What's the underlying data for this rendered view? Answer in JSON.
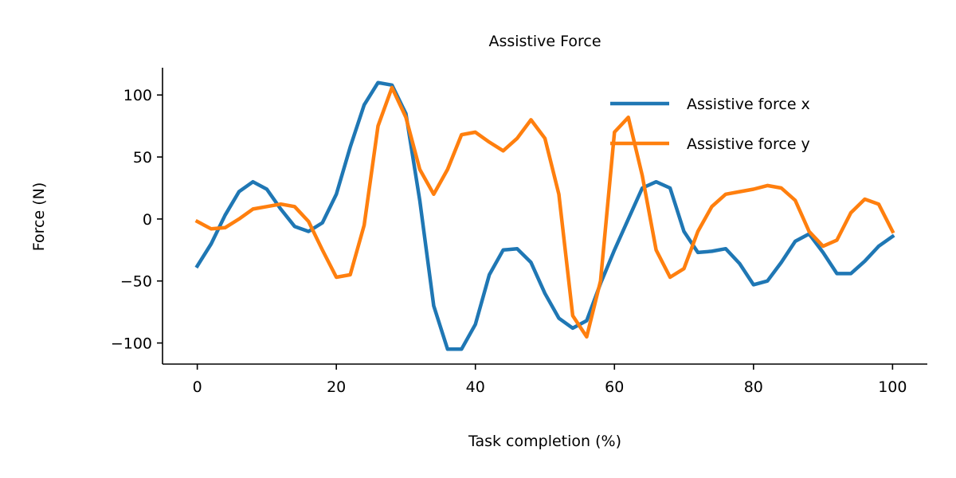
{
  "chart_data": {
    "type": "line",
    "title": "Assistive Force",
    "xlabel": "Task completion (%)",
    "ylabel": "Force (N)",
    "xlim": [
      -5,
      105
    ],
    "ylim": [
      -117,
      122
    ],
    "xticks": [
      0,
      20,
      40,
      60,
      80,
      100
    ],
    "yticks": [
      -100,
      -50,
      0,
      50,
      100
    ],
    "xtick_labels": [
      "0",
      "20",
      "40",
      "60",
      "80",
      "100"
    ],
    "ytick_labels": [
      "−100",
      "−50",
      "0",
      "50",
      "100"
    ],
    "grid": false,
    "legend_position": "top-right",
    "colors": {
      "series_x": "#1f77b4",
      "series_y": "#ff7f0e"
    },
    "x": [
      0,
      2,
      4,
      6,
      8,
      10,
      12,
      14,
      16,
      18,
      20,
      22,
      24,
      26,
      28,
      30,
      32,
      34,
      36,
      38,
      40,
      42,
      44,
      46,
      48,
      50,
      52,
      54,
      56,
      58,
      60,
      62,
      64,
      66,
      68,
      70,
      72,
      74,
      76,
      78,
      80,
      82,
      84,
      86,
      88,
      90,
      92,
      94,
      96,
      98,
      100
    ],
    "series": [
      {
        "name": "Assistive force x",
        "values": [
          -38,
          -20,
          3,
          22,
          30,
          24,
          8,
          -6,
          -10,
          -3,
          20,
          58,
          92,
          110,
          108,
          85,
          15,
          -70,
          -105,
          -105,
          -85,
          -45,
          -25,
          -24,
          -35,
          -60,
          -80,
          -88,
          -82,
          -52,
          -25,
          0,
          25,
          30,
          25,
          -10,
          -27,
          -26,
          -24,
          -36,
          -53,
          -50,
          -35,
          -18,
          -12,
          -27,
          -44,
          -44,
          -34,
          -22,
          -14
        ]
      },
      {
        "name": "Assistive force y",
        "values": [
          -2,
          -8,
          -7,
          0,
          8,
          10,
          12,
          10,
          -2,
          -25,
          -47,
          -45,
          -5,
          75,
          106,
          82,
          40,
          20,
          40,
          68,
          70,
          62,
          55,
          65,
          80,
          65,
          20,
          -78,
          -95,
          -50,
          70,
          82,
          35,
          -25,
          -47,
          -40,
          -10,
          10,
          20,
          22,
          24,
          27,
          25,
          15,
          -10,
          -22,
          -17,
          5,
          16,
          12,
          -10
        ]
      }
    ]
  }
}
